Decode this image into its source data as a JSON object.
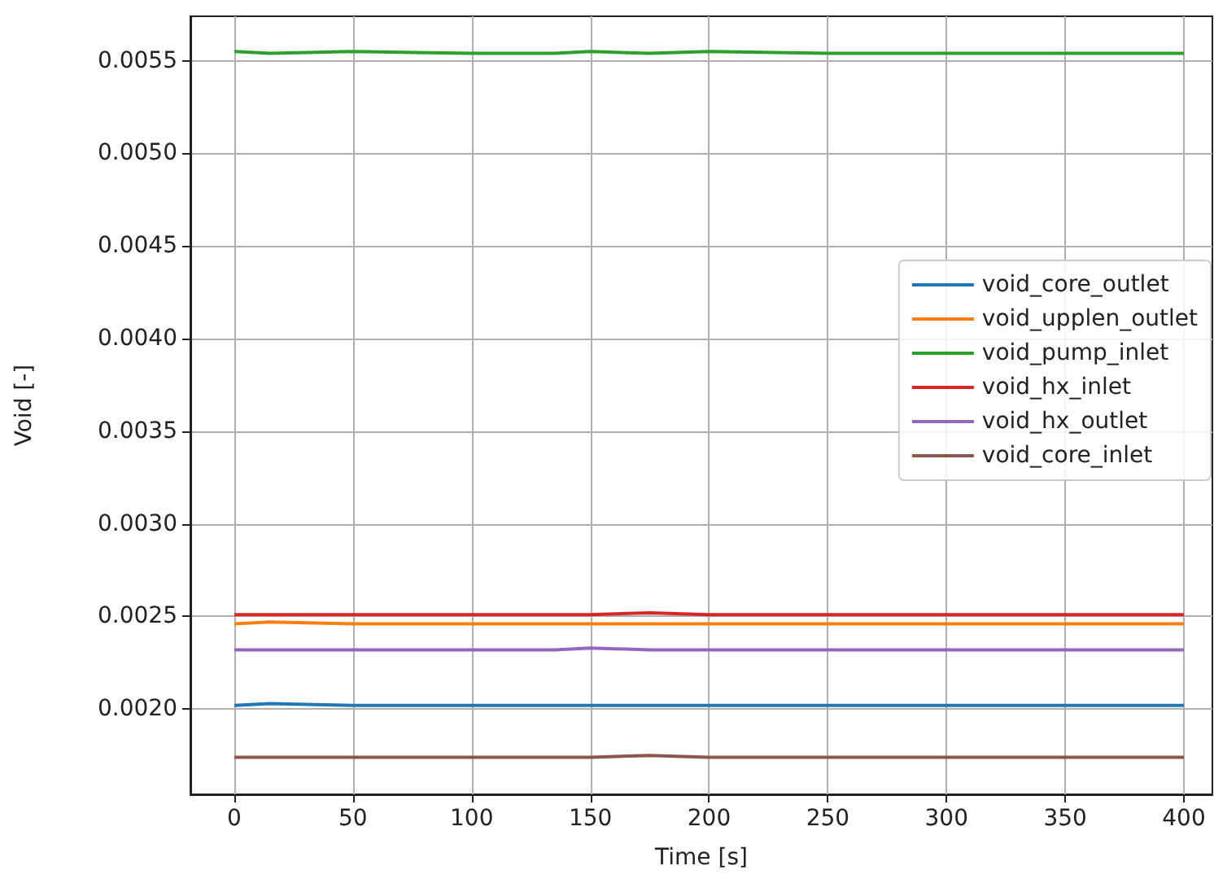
{
  "chart_data": {
    "type": "line",
    "xlabel": "Time [s]",
    "ylabel": "Void [-]",
    "x": [
      0,
      15,
      50,
      100,
      135,
      150,
      175,
      200,
      250,
      300,
      350,
      400
    ],
    "series": [
      {
        "name": "void_core_outlet",
        "color": "#1f77b4",
        "values": [
          0.00202,
          0.00203,
          0.00202,
          0.00202,
          0.00202,
          0.00202,
          0.00202,
          0.00202,
          0.00202,
          0.00202,
          0.00202,
          0.00202
        ]
      },
      {
        "name": "void_upplen_outlet",
        "color": "#ff7f0e",
        "values": [
          0.00246,
          0.00247,
          0.00246,
          0.00246,
          0.00246,
          0.00246,
          0.00246,
          0.00246,
          0.00246,
          0.00246,
          0.00246,
          0.00246
        ]
      },
      {
        "name": "void_pump_inlet",
        "color": "#2ca02c",
        "values": [
          0.00555,
          0.00554,
          0.00555,
          0.00554,
          0.00554,
          0.00555,
          0.00554,
          0.00555,
          0.00554,
          0.00554,
          0.00554,
          0.00554
        ]
      },
      {
        "name": "void_hx_inlet",
        "color": "#d62728",
        "values": [
          0.00251,
          0.00251,
          0.00251,
          0.00251,
          0.00251,
          0.00251,
          0.00252,
          0.00251,
          0.00251,
          0.00251,
          0.00251,
          0.00251
        ]
      },
      {
        "name": "void_hx_outlet",
        "color": "#9467bd",
        "values": [
          0.00232,
          0.00232,
          0.00232,
          0.00232,
          0.00232,
          0.00233,
          0.00232,
          0.00232,
          0.00232,
          0.00232,
          0.00232,
          0.00232
        ]
      },
      {
        "name": "void_core_inlet",
        "color": "#8c564b",
        "values": [
          0.00174,
          0.00174,
          0.00174,
          0.00174,
          0.00174,
          0.00174,
          0.00175,
          0.00174,
          0.00174,
          0.00174,
          0.00174,
          0.00174
        ]
      }
    ],
    "xlim": [
      -18.5,
      412
    ],
    "xticks": [
      0,
      50,
      100,
      150,
      200,
      250,
      300,
      350,
      400
    ],
    "ylim": [
      0.00154,
      0.00574
    ],
    "yticks": [
      {
        "value": 0.002,
        "label": "0.0020"
      },
      0.0025,
      {
        "value": 0.003,
        "label": "0.0030"
      },
      0.0035,
      {
        "value": 0.004,
        "label": "0.0040"
      },
      0.0045,
      {
        "value": 0.005,
        "label": "0.0050"
      },
      0.0055
    ],
    "grid": true,
    "legend": "right",
    "marker": "none",
    "line_style": "solid"
  }
}
